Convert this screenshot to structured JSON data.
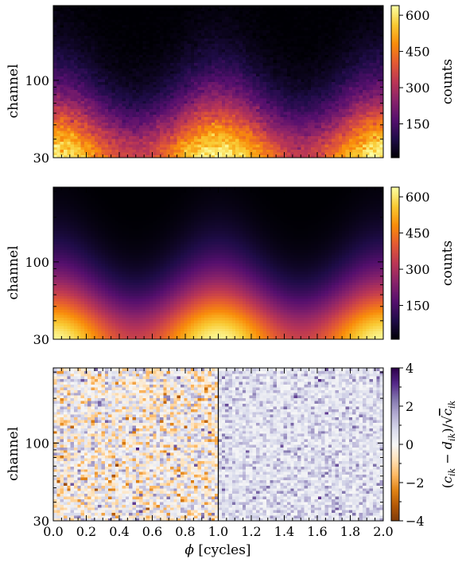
{
  "figure": {
    "xlabel": "ϕ [cycles]",
    "x_ticks": [
      "0.0",
      "0.2",
      "0.4",
      "0.6",
      "0.8",
      "1.0",
      "1.2",
      "1.4",
      "1.6",
      "1.8",
      "2.0"
    ]
  },
  "chart_data": [
    {
      "type": "heatmap",
      "panel": "top",
      "content": "observed counts",
      "ylabel": "channel",
      "y_ticks": [
        "30",
        "100"
      ],
      "xlim": [
        0,
        2
      ],
      "y_scale": "log",
      "ylim": [
        30,
        320
      ],
      "colormap": "inferno",
      "colorbar": {
        "label": "counts",
        "ticks": [
          "150",
          "300",
          "450",
          "600"
        ],
        "range": [
          10,
          640
        ]
      },
      "noise": true,
      "peaks_at_phase": [
        0.0,
        1.0,
        2.0
      ],
      "peak_value": 620
    },
    {
      "type": "heatmap",
      "panel": "middle",
      "content": "model counts",
      "ylabel": "channel",
      "y_ticks": [
        "30",
        "100"
      ],
      "xlim": [
        0,
        2
      ],
      "y_scale": "log",
      "ylim": [
        30,
        320
      ],
      "colormap": "inferno",
      "colorbar": {
        "label": "counts",
        "ticks": [
          "150",
          "300",
          "450",
          "600"
        ],
        "range": [
          10,
          640
        ]
      },
      "noise": false,
      "peaks_at_phase": [
        0.0,
        1.0,
        2.0
      ],
      "peak_value": 620
    },
    {
      "type": "heatmap",
      "panel": "bottom",
      "content": "residuals",
      "ylabel": "channel",
      "y_ticks": [
        "30",
        "100"
      ],
      "xlim": [
        0,
        2
      ],
      "y_scale": "log",
      "ylim": [
        30,
        320
      ],
      "colormap": "PuOr",
      "colorbar": {
        "label": "(c_ik − d_ik)/√c_ik",
        "ticks": [
          "−4",
          "−2",
          "0",
          "2",
          "4"
        ],
        "range": [
          -4,
          4
        ]
      },
      "divider_at_phase": 1.0,
      "left_half": "residuals",
      "right_half": "absolute residuals"
    }
  ]
}
